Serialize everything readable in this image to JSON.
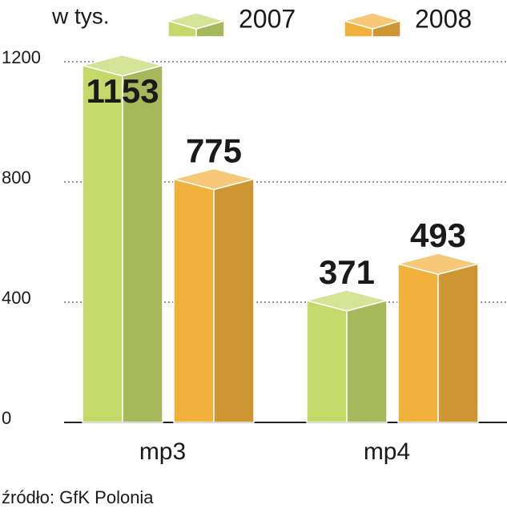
{
  "chart_data": {
    "type": "bar3d",
    "unit": "w tys.",
    "source": "źródło: GfK Polonia",
    "categories": [
      "mp3",
      "mp4"
    ],
    "series": [
      {
        "name": "2007",
        "color": "#c5d96a",
        "values": [
          1153,
          371
        ]
      },
      {
        "name": "2008",
        "color": "#f2b13c",
        "values": [
          775,
          493
        ]
      }
    ],
    "ylim": [
      0,
      1200
    ],
    "yticks": [
      0,
      400,
      800,
      1200
    ],
    "grid": true
  }
}
